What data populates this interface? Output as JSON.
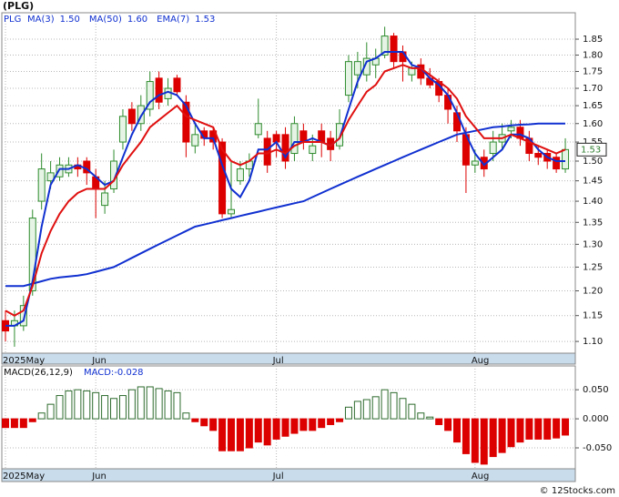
{
  "chart_data": [
    {
      "type": "candlestick",
      "title": "(PLG)",
      "ticker": "PLG",
      "categories": [
        "2025May",
        null,
        null,
        null,
        null,
        null,
        null,
        null,
        null,
        null,
        "Jun",
        null,
        null,
        null,
        null,
        null,
        null,
        null,
        null,
        null,
        null,
        null,
        null,
        null,
        null,
        null,
        null,
        null,
        null,
        null,
        "Jul",
        null,
        null,
        null,
        null,
        null,
        null,
        null,
        null,
        null,
        null,
        null,
        null,
        null,
        null,
        null,
        null,
        null,
        null,
        null,
        null,
        null,
        "Aug",
        null,
        null,
        null,
        null,
        null,
        null,
        null,
        null,
        null,
        null
      ],
      "open": [
        1.14,
        1.13,
        1.13,
        1.2,
        1.4,
        1.45,
        1.46,
        1.47,
        1.49,
        1.5,
        1.46,
        1.39,
        1.43,
        1.55,
        1.64,
        1.6,
        1.64,
        1.73,
        1.67,
        1.73,
        1.66,
        1.54,
        1.58,
        1.58,
        1.55,
        1.37,
        1.45,
        1.48,
        1.57,
        1.56,
        1.57,
        1.57,
        1.52,
        1.58,
        1.52,
        1.58,
        1.56,
        1.54,
        1.68,
        1.74,
        1.74,
        1.77,
        1.8,
        1.86,
        1.81,
        1.74,
        1.77,
        1.73,
        1.72,
        1.68,
        1.63,
        1.57,
        1.49,
        1.51,
        1.52,
        1.55,
        1.58,
        1.59,
        1.56,
        1.52,
        1.52,
        1.51,
        1.48
      ],
      "high": [
        1.16,
        1.16,
        1.19,
        1.38,
        1.52,
        1.5,
        1.51,
        1.51,
        1.51,
        1.51,
        1.48,
        1.45,
        1.53,
        1.64,
        1.66,
        1.68,
        1.75,
        1.75,
        1.73,
        1.74,
        1.68,
        1.6,
        1.59,
        1.59,
        1.56,
        1.5,
        1.5,
        1.52,
        1.67,
        1.58,
        1.58,
        1.59,
        1.62,
        1.6,
        1.57,
        1.6,
        1.58,
        1.64,
        1.8,
        1.81,
        1.84,
        1.82,
        1.89,
        1.87,
        1.83,
        1.78,
        1.79,
        1.76,
        1.73,
        1.7,
        1.65,
        1.59,
        1.53,
        1.53,
        1.58,
        1.6,
        1.61,
        1.61,
        1.58,
        1.54,
        1.53,
        1.52,
        1.56
      ],
      "low": [
        1.1,
        1.09,
        1.12,
        1.19,
        1.38,
        1.43,
        1.45,
        1.46,
        1.46,
        1.44,
        1.36,
        1.37,
        1.42,
        1.53,
        1.58,
        1.58,
        1.62,
        1.64,
        1.65,
        1.68,
        1.51,
        1.52,
        1.54,
        1.53,
        1.36,
        1.36,
        1.44,
        1.46,
        1.56,
        1.47,
        1.51,
        1.48,
        1.5,
        1.53,
        1.5,
        1.51,
        1.5,
        1.53,
        1.66,
        1.7,
        1.72,
        1.73,
        1.79,
        1.76,
        1.72,
        1.72,
        1.71,
        1.7,
        1.66,
        1.6,
        1.55,
        1.42,
        1.47,
        1.46,
        1.5,
        1.53,
        1.56,
        1.54,
        1.5,
        1.49,
        1.48,
        1.47,
        1.47
      ],
      "close": [
        1.12,
        1.14,
        1.17,
        1.36,
        1.48,
        1.47,
        1.49,
        1.49,
        1.48,
        1.47,
        1.43,
        1.42,
        1.5,
        1.62,
        1.6,
        1.65,
        1.72,
        1.66,
        1.7,
        1.69,
        1.55,
        1.57,
        1.56,
        1.55,
        1.37,
        1.38,
        1.48,
        1.5,
        1.6,
        1.49,
        1.55,
        1.5,
        1.6,
        1.55,
        1.54,
        1.55,
        1.53,
        1.6,
        1.78,
        1.78,
        1.79,
        1.79,
        1.86,
        1.78,
        1.78,
        1.76,
        1.73,
        1.71,
        1.68,
        1.64,
        1.58,
        1.49,
        1.5,
        1.48,
        1.55,
        1.57,
        1.59,
        1.56,
        1.52,
        1.51,
        1.5,
        1.48,
        1.53
      ],
      "up_color": "#2e8b2e",
      "down_color": "#dd0000",
      "series": [
        {
          "name": "MA(3)",
          "color": "#1030d0",
          "last": {
            "value": 1.5,
            "label": "1.50"
          },
          "values": [
            1.13,
            1.13,
            1.14,
            1.22,
            1.34,
            1.44,
            1.48,
            1.48,
            1.49,
            1.48,
            1.46,
            1.44,
            1.45,
            1.51,
            1.57,
            1.62,
            1.66,
            1.68,
            1.69,
            1.68,
            1.65,
            1.6,
            1.56,
            1.56,
            1.49,
            1.43,
            1.41,
            1.45,
            1.53,
            1.53,
            1.55,
            1.51,
            1.55,
            1.55,
            1.56,
            1.55,
            1.54,
            1.56,
            1.64,
            1.72,
            1.78,
            1.79,
            1.81,
            1.81,
            1.81,
            1.77,
            1.76,
            1.73,
            1.71,
            1.68,
            1.63,
            1.57,
            1.52,
            1.49,
            1.51,
            1.53,
            1.57,
            1.57,
            1.56,
            1.53,
            1.51,
            1.5,
            1.5
          ]
        },
        {
          "name": "MA(50)",
          "color": "#1030d0",
          "last": {
            "value": 1.6,
            "label": "1.60"
          },
          "values": [
            1.21,
            1.21,
            1.21,
            1.215,
            1.22,
            1.225,
            1.228,
            1.23,
            1.232,
            1.235,
            1.24,
            1.245,
            1.25,
            1.26,
            1.27,
            1.28,
            1.29,
            1.3,
            1.31,
            1.32,
            1.33,
            1.34,
            1.345,
            1.35,
            1.355,
            1.36,
            1.365,
            1.37,
            1.375,
            1.38,
            1.385,
            1.39,
            1.395,
            1.4,
            1.41,
            1.42,
            1.43,
            1.44,
            1.45,
            1.46,
            1.47,
            1.48,
            1.49,
            1.5,
            1.51,
            1.52,
            1.53,
            1.54,
            1.55,
            1.56,
            1.57,
            1.575,
            1.58,
            1.585,
            1.59,
            1.592,
            1.595,
            1.597,
            1.598,
            1.6,
            1.6,
            1.6,
            1.6
          ]
        },
        {
          "name": "EMA(7)",
          "color": "#e01010",
          "last": 1.53,
          "values": [
            1.16,
            1.15,
            1.16,
            1.21,
            1.28,
            1.33,
            1.37,
            1.4,
            1.42,
            1.43,
            1.43,
            1.43,
            1.45,
            1.49,
            1.52,
            1.55,
            1.59,
            1.61,
            1.63,
            1.65,
            1.62,
            1.61,
            1.6,
            1.59,
            1.53,
            1.5,
            1.49,
            1.5,
            1.52,
            1.52,
            1.53,
            1.52,
            1.54,
            1.55,
            1.55,
            1.55,
            1.54,
            1.56,
            1.61,
            1.65,
            1.69,
            1.71,
            1.75,
            1.76,
            1.77,
            1.76,
            1.76,
            1.74,
            1.72,
            1.7,
            1.67,
            1.62,
            1.59,
            1.56,
            1.56,
            1.56,
            1.57,
            1.56,
            1.55,
            1.54,
            1.53,
            1.52,
            1.53
          ]
        }
      ],
      "log_scale": true,
      "grid": true,
      "ylim": [
        1.078,
        1.936
      ],
      "yticks": [
        {
          "value": 1.1,
          "label": "1.10"
        },
        1.15,
        {
          "value": 1.2,
          "label": "1.20"
        },
        1.25,
        {
          "value": 1.3,
          "label": "1.30"
        },
        1.35,
        {
          "value": 1.4,
          "label": "1.40"
        },
        1.45,
        {
          "value": 1.5,
          "label": "1.50"
        },
        1.55,
        {
          "value": 1.6,
          "label": "1.60"
        },
        1.65,
        {
          "value": 1.7,
          "label": "1.70"
        },
        1.75,
        {
          "value": 1.8,
          "label": "1.80"
        },
        1.85
      ]
    },
    {
      "type": "bar",
      "title": "MACD(26,12,9)",
      "last_label": "MACD:",
      "last": -0.028,
      "categories": [
        "2025May",
        null,
        null,
        null,
        null,
        null,
        null,
        null,
        null,
        null,
        "Jun",
        null,
        null,
        null,
        null,
        null,
        null,
        null,
        null,
        null,
        null,
        null,
        null,
        null,
        null,
        null,
        null,
        null,
        null,
        null,
        "Jul",
        null,
        null,
        null,
        null,
        null,
        null,
        null,
        null,
        null,
        null,
        null,
        null,
        null,
        null,
        null,
        null,
        null,
        null,
        null,
        null,
        null,
        "Aug",
        null,
        null,
        null,
        null,
        null,
        null,
        null,
        null,
        null,
        null
      ],
      "values": [
        -0.015,
        -0.015,
        -0.015,
        -0.005,
        0.01,
        0.025,
        0.04,
        0.048,
        0.05,
        0.048,
        0.045,
        0.04,
        0.035,
        0.04,
        0.05,
        0.055,
        0.055,
        0.052,
        0.048,
        0.045,
        0.01,
        -0.005,
        -0.012,
        -0.02,
        -0.055,
        -0.055,
        -0.055,
        -0.05,
        -0.04,
        -0.045,
        -0.035,
        -0.03,
        -0.025,
        -0.02,
        -0.02,
        -0.015,
        -0.01,
        -0.005,
        0.02,
        0.03,
        0.033,
        0.038,
        0.05,
        0.045,
        0.035,
        0.025,
        0.01,
        0.003,
        -0.01,
        -0.02,
        -0.04,
        -0.06,
        -0.075,
        -0.078,
        -0.065,
        -0.058,
        -0.048,
        -0.04,
        -0.035,
        -0.035,
        -0.035,
        -0.033,
        -0.028
      ],
      "up_color": "#2e6b2e",
      "down_color": "#dd0000",
      "grid": true,
      "ylim": [
        -0.086,
        0.091
      ],
      "yticks": [
        {
          "value": -0.05,
          "label": "-0.050"
        },
        {
          "value": 0,
          "label": "0.000"
        },
        {
          "value": 0.05,
          "label": "0.050"
        }
      ],
      "credit": "© 12Stocks.com"
    }
  ]
}
